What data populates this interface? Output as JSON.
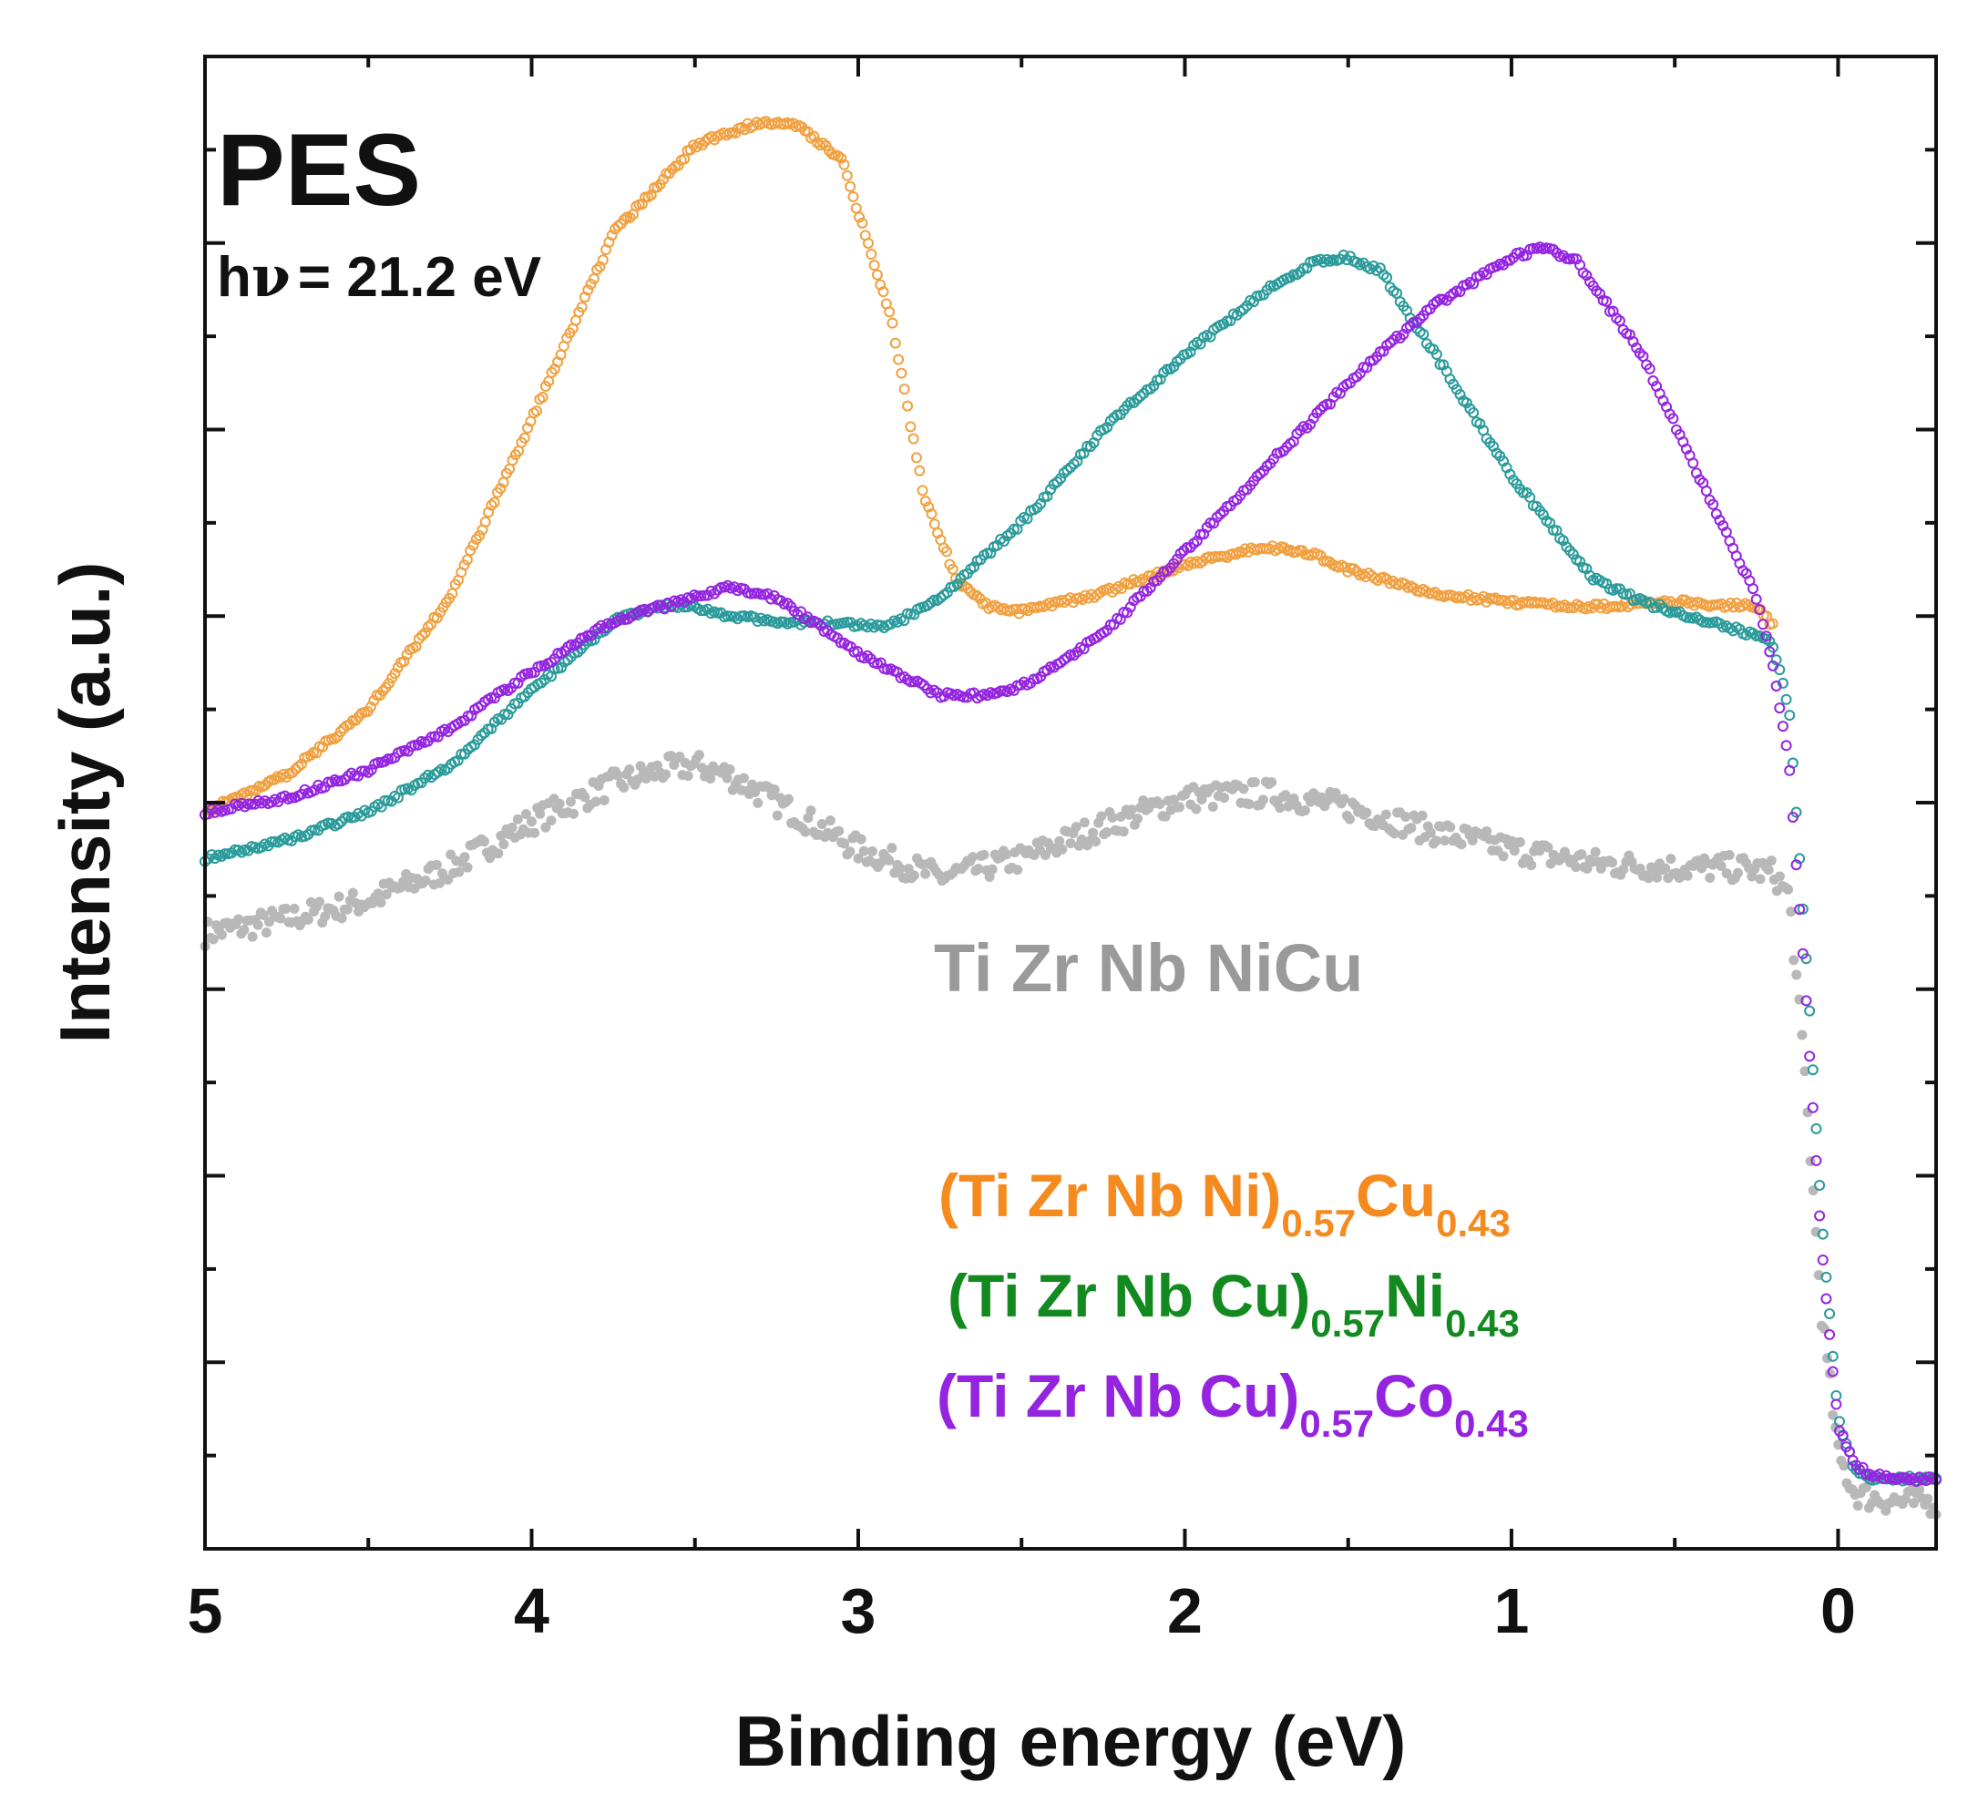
{
  "chart_data": {
    "type": "scatter",
    "title": "PES",
    "subtitle_h": "h",
    "subtitle_nu": "ν",
    "subtitle_rest": "= 21.2 eV",
    "xlabel": "Binding energy (eV)",
    "ylabel": "Intensity (a.u.)",
    "xlim": [
      5,
      -0.3
    ],
    "ylim": [
      0,
      16
    ],
    "x_ticks": [
      5,
      4,
      3,
      2,
      1,
      0
    ],
    "x_tick_labels": [
      "5",
      "4",
      "3",
      "2",
      "1",
      "0"
    ],
    "x_axis_reversed": true,
    "y_tick_labels_shown": false,
    "series": [
      {
        "name": "Ti Zr Nb NiCu",
        "color": "#b8b8b8",
        "marker": "filled-circle",
        "x": [
          5.0,
          4.75,
          4.5,
          4.25,
          4.0,
          3.75,
          3.6,
          3.5,
          3.4,
          3.25,
          3.0,
          2.75,
          2.5,
          2.25,
          2.0,
          1.75,
          1.5,
          1.25,
          1.0,
          0.75,
          0.5,
          0.3,
          0.2,
          0.15,
          0.1,
          0.05,
          0.0,
          -0.05,
          -0.1,
          -0.2,
          -0.3
        ],
        "y": [
          6.6,
          6.75,
          6.95,
          7.3,
          7.8,
          8.2,
          8.35,
          8.4,
          8.3,
          8.0,
          7.5,
          7.2,
          7.4,
          7.75,
          8.05,
          8.1,
          7.95,
          7.7,
          7.5,
          7.35,
          7.3,
          7.3,
          7.25,
          7.0,
          5.0,
          2.5,
          1.0,
          0.6,
          0.55,
          0.5,
          0.5
        ]
      },
      {
        "name": "(Ti Zr Nb Ni)",
        "name_sub": "0.57",
        "name_suffix": "Cu",
        "name_suffix_sub": "0.43",
        "color": "#f0a040",
        "label_color": "#f58a1f",
        "marker": "open-circle",
        "x": [
          5.0,
          4.75,
          4.5,
          4.25,
          4.0,
          3.75,
          3.5,
          3.3,
          3.2,
          3.05,
          2.9,
          2.8,
          2.7,
          2.6,
          2.5,
          2.25,
          2.0,
          1.75,
          1.6,
          1.5,
          1.25,
          1.0,
          0.75,
          0.5,
          0.25,
          0.2
        ],
        "y": [
          7.9,
          8.3,
          9.0,
          10.2,
          12.1,
          14.1,
          15.05,
          15.3,
          15.3,
          14.9,
          13.2,
          11.3,
          10.4,
          10.1,
          10.05,
          10.25,
          10.55,
          10.75,
          10.65,
          10.5,
          10.25,
          10.15,
          10.1,
          10.15,
          10.1,
          9.9
        ]
      },
      {
        "name": "(Ti Zr Nb Cu)",
        "name_sub": "0.57",
        "name_suffix": "Ni",
        "name_suffix_sub": "0.43",
        "color": "#2a9a9a",
        "label_color": "#128a1f",
        "marker": "open-circle",
        "x": [
          5.0,
          4.75,
          4.5,
          4.25,
          4.0,
          3.75,
          3.6,
          3.5,
          3.4,
          3.25,
          3.0,
          2.9,
          2.75,
          2.5,
          2.25,
          2.0,
          1.75,
          1.6,
          1.5,
          1.4,
          1.25,
          1.0,
          0.75,
          0.6,
          0.5,
          0.3,
          0.2,
          0.15,
          0.1,
          0.05,
          0.0,
          -0.05,
          -0.1,
          -0.2,
          -0.3
        ],
        "y": [
          7.4,
          7.6,
          7.9,
          8.4,
          9.2,
          9.95,
          10.1,
          10.1,
          10.0,
          9.95,
          9.9,
          9.9,
          10.2,
          11.0,
          12.0,
          12.8,
          13.5,
          13.8,
          13.85,
          13.7,
          12.9,
          11.5,
          10.4,
          10.15,
          10.05,
          9.85,
          9.7,
          9.0,
          6.5,
          3.5,
          1.4,
          0.85,
          0.75,
          0.75,
          0.75
        ]
      },
      {
        "name": "(Ti Zr Nb Cu)",
        "name_sub": "0.57",
        "name_suffix": "Co",
        "name_suffix_sub": "0.43",
        "color": "#9424e0",
        "label_color": "#9424e0",
        "marker": "open-circle",
        "x": [
          5.0,
          4.75,
          4.5,
          4.25,
          4.0,
          3.75,
          3.5,
          3.4,
          3.25,
          3.0,
          2.75,
          2.6,
          2.5,
          2.25,
          2.0,
          1.75,
          1.5,
          1.25,
          1.0,
          0.9,
          0.8,
          0.6,
          0.4,
          0.25,
          0.2,
          0.15,
          0.1,
          0.05,
          0.0,
          -0.05,
          -0.1,
          -0.2,
          -0.3
        ],
        "y": [
          7.9,
          8.05,
          8.35,
          8.8,
          9.4,
          9.95,
          10.2,
          10.3,
          10.2,
          9.6,
          9.15,
          9.15,
          9.25,
          9.8,
          10.7,
          11.6,
          12.5,
          13.3,
          13.85,
          13.95,
          13.8,
          12.8,
          11.3,
          10.2,
          9.5,
          8.4,
          6.0,
          3.2,
          1.3,
          0.9,
          0.8,
          0.75,
          0.75
        ]
      }
    ]
  }
}
